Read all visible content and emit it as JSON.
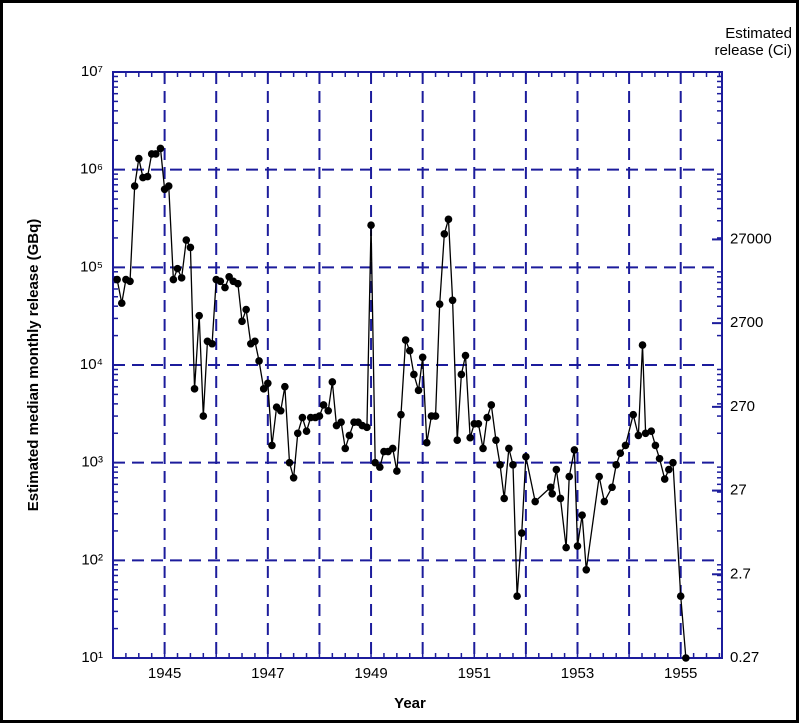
{
  "chart_data": {
    "type": "line",
    "xlabel": "Year",
    "ylabel": "Estimated median monthly release (GBq)",
    "y2label": [
      "Estimated",
      "release (Ci)"
    ],
    "x": [
      1944.08,
      1944.17,
      1944.25,
      1944.33,
      1944.42,
      1944.5,
      1944.58,
      1944.67,
      1944.75,
      1944.83,
      1944.92,
      1945.0,
      1945.08,
      1945.17,
      1945.25,
      1945.33,
      1945.42,
      1945.5,
      1945.58,
      1945.67,
      1945.75,
      1945.83,
      1945.92,
      1946.0,
      1946.08,
      1946.17,
      1946.25,
      1946.33,
      1946.42,
      1946.5,
      1946.58,
      1946.67,
      1946.75,
      1946.83,
      1946.92,
      1947.0,
      1947.08,
      1947.17,
      1947.25,
      1947.33,
      1947.42,
      1947.5,
      1947.58,
      1947.67,
      1947.75,
      1947.83,
      1947.92,
      1948.0,
      1948.08,
      1948.17,
      1948.25,
      1948.33,
      1948.42,
      1948.5,
      1948.58,
      1948.67,
      1948.75,
      1948.83,
      1948.92,
      1949.0,
      1949.08,
      1949.17,
      1949.25,
      1949.33,
      1949.42,
      1949.5,
      1949.58,
      1949.67,
      1949.75,
      1949.83,
      1949.92,
      1950.0,
      1950.08,
      1950.17,
      1950.25,
      1950.33,
      1950.42,
      1950.5,
      1950.58,
      1950.67,
      1950.75,
      1950.83,
      1950.92,
      1951.0,
      1951.08,
      1951.17,
      1951.25,
      1951.33,
      1951.42,
      1951.5,
      1951.58,
      1951.67,
      1951.75,
      1951.83,
      1951.92,
      1952.0,
      1952.18,
      1952.48,
      1952.51,
      1952.59,
      1952.67,
      1952.78,
      1952.84,
      1952.94,
      1953.0,
      1953.09,
      1953.17,
      1953.42,
      1953.52,
      1953.67,
      1953.75,
      1953.83,
      1953.93,
      1954.08,
      1954.18,
      1954.26,
      1954.32,
      1954.43,
      1954.51,
      1954.59,
      1954.69,
      1954.77,
      1954.85,
      1955.0,
      1955.1
    ],
    "series": [
      {
        "color": "#000000",
        "values": [
          75000,
          43000,
          75000,
          72000,
          680000,
          1300000,
          830000,
          850000,
          1450000,
          1450000,
          1650000,
          630000,
          680000,
          75000,
          97000,
          78000,
          190000,
          160000,
          5700,
          32000,
          3000,
          17500,
          16500,
          75000,
          72000,
          62000,
          80000,
          72000,
          68000,
          28000,
          37000,
          16500,
          17500,
          11000,
          5700,
          6500,
          1500,
          3700,
          3400,
          6000,
          1000,
          700,
          2000,
          2900,
          2100,
          2900,
          2900,
          3000,
          3900,
          3400,
          6700,
          2400,
          2600,
          1400,
          1900,
          2600,
          2600,
          2400,
          2300,
          270000,
          1000,
          900,
          1300,
          1300,
          1400,
          820,
          3100,
          18000,
          14000,
          8000,
          5500,
          12000,
          1600,
          3000,
          3000,
          42000,
          220000,
          310000,
          46000,
          1700,
          8000,
          12500,
          1800,
          2500,
          2500,
          1400,
          2900,
          3900,
          1700,
          950,
          430,
          1400,
          950,
          43,
          190,
          1150,
          400,
          560,
          480,
          850,
          430,
          135,
          720,
          1350,
          140,
          290,
          80,
          720,
          400,
          560,
          950,
          1250,
          1500,
          3100,
          1900,
          16000,
          2000,
          2100,
          1500,
          1100,
          680,
          850,
          1000,
          43,
          10
        ]
      }
    ],
    "xlim": [
      1944,
      1955.8
    ],
    "xticks": [
      {
        "value": 1945,
        "label": "1945"
      },
      {
        "value": 1946,
        "label": null
      },
      {
        "value": 1947,
        "label": "1947"
      },
      {
        "value": 1948,
        "label": null
      },
      {
        "value": 1949,
        "label": "1949"
      },
      {
        "value": 1950,
        "label": null
      },
      {
        "value": 1951,
        "label": "1951"
      },
      {
        "value": 1952,
        "label": null
      },
      {
        "value": 1953,
        "label": "1953"
      },
      {
        "value": 1954,
        "label": null
      },
      {
        "value": 1955,
        "label": "1955"
      }
    ],
    "ylim": [
      10,
      10000000
    ],
    "yticks": [
      {
        "value": 10,
        "label": "10¹"
      },
      {
        "value": 100,
        "label": "10²"
      },
      {
        "value": 1000,
        "label": "10³"
      },
      {
        "value": 10000,
        "label": "10⁴"
      },
      {
        "value": 100000,
        "label": "10⁵"
      },
      {
        "value": 1000000,
        "label": "10⁶"
      },
      {
        "value": 10000000,
        "label": "10⁷"
      }
    ],
    "y2lim": [
      0.27,
      2700000
    ],
    "y2ticks": [
      0.27,
      2.7,
      27,
      270,
      2700,
      27000
    ],
    "ylog": true,
    "y2log": true,
    "grid": true,
    "axis_color": "#1c1c9c"
  }
}
